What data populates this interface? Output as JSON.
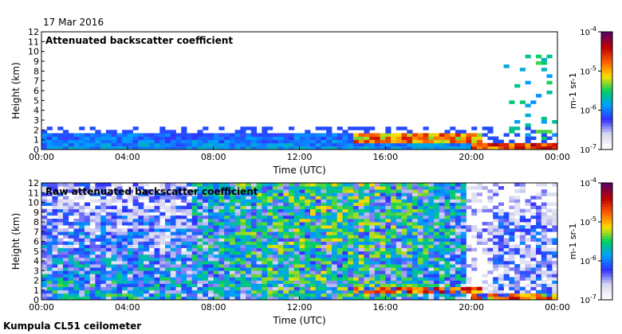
{
  "date_label": "17 Mar 2016",
  "footer_label": "Kumpula CL51 ceilometer",
  "chart_data": [
    {
      "type": "heatmap",
      "title": "Attenuated backscatter coefficient",
      "xlabel": "Time (UTC)",
      "ylabel": "Height (km)",
      "xlim": [
        0,
        24
      ],
      "ylim": [
        0,
        12
      ],
      "xticks": [
        "00:00",
        "04:00",
        "08:00",
        "12:00",
        "16:00",
        "20:00",
        "00:00"
      ],
      "yticks": [
        "0",
        "1",
        "2",
        "3",
        "4",
        "5",
        "6",
        "7",
        "8",
        "9",
        "10",
        "11",
        "12"
      ],
      "colorbar": {
        "scale": "log",
        "range": [
          1e-07,
          0.0001
        ],
        "tick_labels": [
          "10-7",
          "10-6",
          "10-5",
          "10-4"
        ],
        "units": "m-1 sr-1",
        "colormap": [
          "#ffffff",
          "#d8d8f0",
          "#3030ff",
          "#00a0ff",
          "#00d060",
          "#ffe000",
          "#ff6000",
          "#c00000",
          "#600060"
        ]
      },
      "features": [
        {
          "name": "boundary layer aerosol",
          "time": [
            0,
            20
          ],
          "height_km": [
            0,
            1.8
          ]
        },
        {
          "name": "cloud base layer",
          "time": [
            14.5,
            20.5
          ],
          "height_km": [
            0.5,
            1.6
          ]
        },
        {
          "name": "precipitation streaks",
          "time": [
            21.5,
            24
          ],
          "height_km": [
            0,
            10
          ]
        }
      ]
    },
    {
      "type": "heatmap",
      "title": "Raw attenuated backscatter coefficient",
      "xlabel": "Time (UTC)",
      "ylabel": "Height (km)",
      "xlim": [
        0,
        24
      ],
      "ylim": [
        0,
        12
      ],
      "xticks": [
        "00:00",
        "04:00",
        "08:00",
        "12:00",
        "16:00",
        "20:00",
        "00:00"
      ],
      "yticks": [
        "0",
        "1",
        "2",
        "3",
        "4",
        "5",
        "6",
        "7",
        "8",
        "9",
        "10",
        "11",
        "12"
      ],
      "colorbar": {
        "scale": "log",
        "range": [
          1e-07,
          0.0001
        ],
        "tick_labels": [
          "10-7",
          "10-6",
          "10-5",
          "10-4"
        ],
        "units": "m-1 sr-1",
        "colormap": [
          "#ffffff",
          "#d8d8f0",
          "#3030ff",
          "#00a0ff",
          "#00d060",
          "#ffe000",
          "#ff6000",
          "#c00000",
          "#600060"
        ]
      },
      "features": [
        {
          "name": "daytime noise",
          "time": [
            7,
            20
          ],
          "height_km": [
            2,
            12
          ]
        },
        {
          "name": "cloud base layer",
          "time": [
            14.5,
            20.5
          ],
          "height_km": [
            0.5,
            1.6
          ]
        }
      ]
    }
  ]
}
